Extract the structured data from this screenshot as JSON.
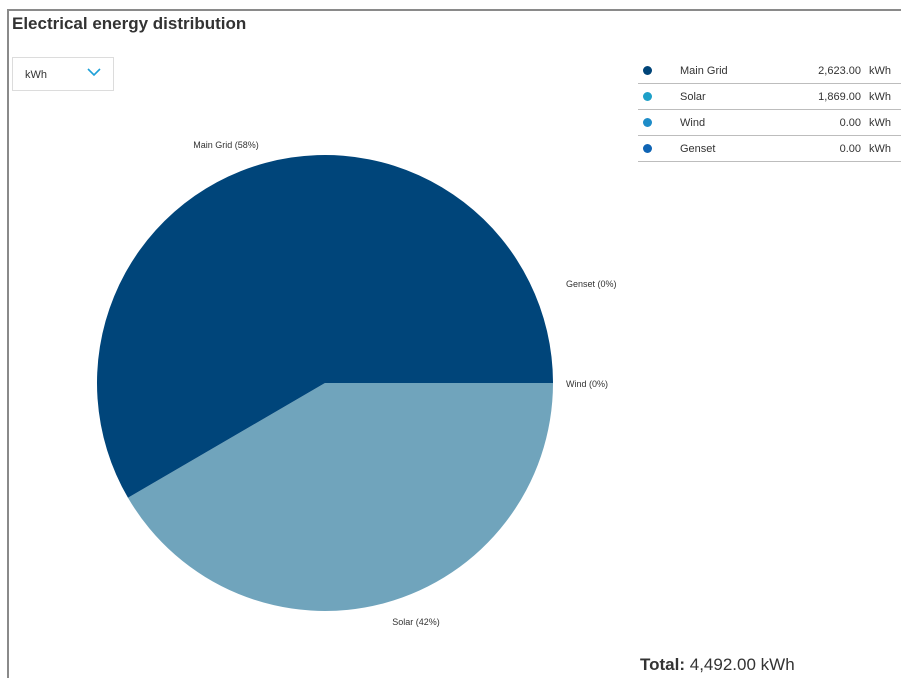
{
  "title": "Electrical energy distribution",
  "unit_select": {
    "value": "kWh",
    "icon": "chevron-down-icon"
  },
  "legend": [
    {
      "name": "Main Grid",
      "value": "2,623.00",
      "unit": "kWh",
      "color": "#004478"
    },
    {
      "name": "Solar",
      "value": "1,869.00",
      "unit": "kWh",
      "color": "#1ea0c8"
    },
    {
      "name": "Wind",
      "value": "0.00",
      "unit": "kWh",
      "color": "#1e8cc8"
    },
    {
      "name": "Genset",
      "value": "0.00",
      "unit": "kWh",
      "color": "#0f64b4"
    }
  ],
  "total": {
    "label": "Total:",
    "value": "4,492.00",
    "unit": "kWh"
  },
  "chart_data": {
    "type": "pie",
    "slices": [
      {
        "name": "Main Grid",
        "value": 2623,
        "label": "Main Grid (58%)",
        "color": "#00457a"
      },
      {
        "name": "Solar",
        "value": 1869,
        "label": "Solar (42%)",
        "color": "#70a4bc"
      },
      {
        "name": "Wind",
        "value": 0,
        "label": "Wind (0%)",
        "color": "#1e8cc8"
      },
      {
        "name": "Genset",
        "value": 0,
        "label": "Genset (0%)",
        "color": "#0f64b4"
      }
    ]
  }
}
